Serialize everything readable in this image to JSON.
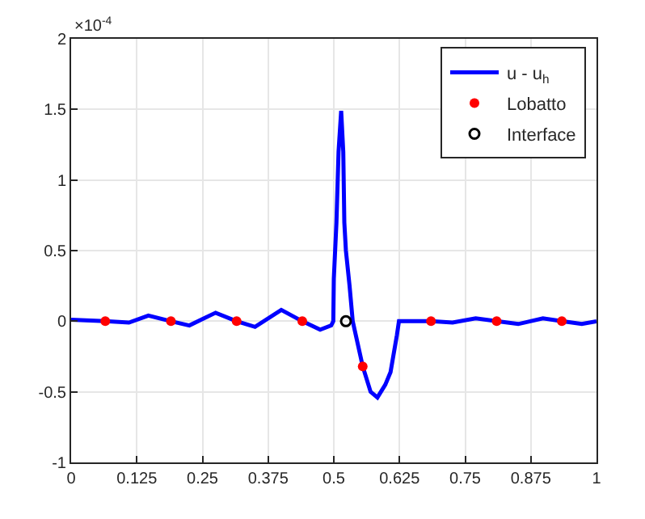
{
  "chart_data": {
    "type": "line",
    "annotations": [
      "×10$^{-4}$"
    ],
    "xlim": [
      0,
      1
    ],
    "xticks": [
      0,
      0.125,
      0.25,
      0.375,
      0.5,
      0.625,
      0.75,
      0.875,
      1
    ],
    "ylim": [
      -1,
      2
    ],
    "yticks": [
      -1,
      -0.5,
      0,
      0.5,
      1,
      1.5,
      2
    ],
    "grid": true,
    "legend": "top right",
    "series": [
      {
        "name": "u - u$_{h}$",
        "color": "#0000ff",
        "marker": "none",
        "line_style": "solid",
        "x": [
          0,
          0.065,
          0.11,
          0.147,
          0.19,
          0.225,
          0.275,
          0.315,
          0.35,
          0.4,
          0.44,
          0.474,
          0.495,
          0.499,
          0.5,
          0.505,
          0.509,
          0.514,
          0.518,
          0.52,
          0.523,
          0.53,
          0.536,
          0.555,
          0.57,
          0.583,
          0.598,
          0.608,
          0.62,
          0.624,
          0.685,
          0.726,
          0.77,
          0.81,
          0.851,
          0.898,
          0.934,
          0.972,
          1
        ],
        "values": [
          0.01,
          0,
          -0.01,
          0.04,
          0,
          -0.03,
          0.06,
          0,
          -0.04,
          0.08,
          0,
          -0.06,
          -0.03,
          0,
          0.3,
          0.7,
          1.2,
          1.49,
          1.2,
          0.7,
          0.5,
          0.25,
          0,
          -0.32,
          -0.5,
          -0.54,
          -0.45,
          -0.36,
          -0.1,
          0,
          0,
          -0.01,
          0.02,
          0,
          -0.02,
          0.02,
          0,
          -0.02,
          0
        ]
      },
      {
        "name": "Lobatto",
        "type": "scatter",
        "color": "#ff0000",
        "marker": "circle",
        "x": [
          0.065,
          0.19,
          0.315,
          0.44,
          0.555,
          0.685,
          0.81,
          0.934
        ],
        "values": [
          0,
          0,
          0,
          0,
          -0.32,
          0,
          0,
          0
        ]
      },
      {
        "name": "Interface",
        "type": "scatter",
        "color": "#000000",
        "marker": "circle-open",
        "x": [
          0.523
        ],
        "values": [
          0
        ]
      }
    ]
  }
}
